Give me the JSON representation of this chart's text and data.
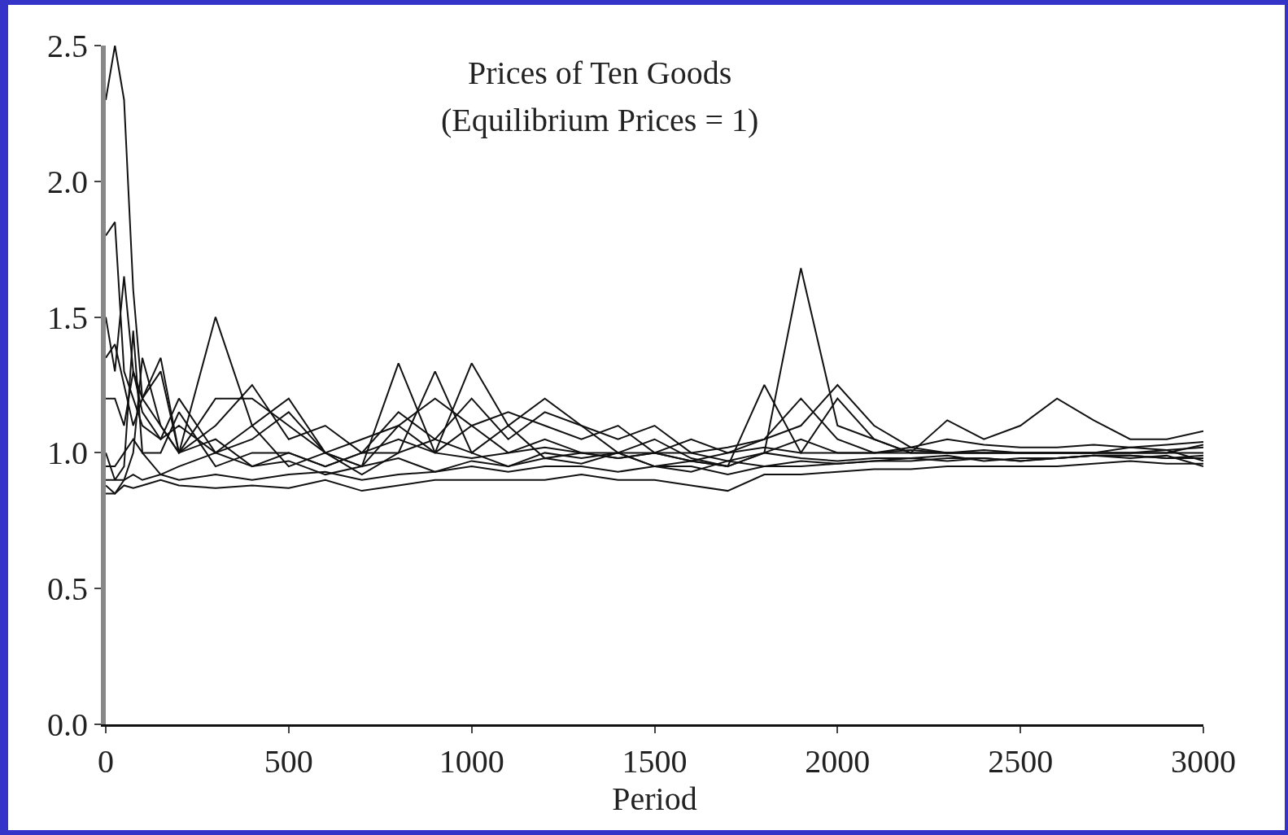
{
  "chart_data": {
    "type": "line",
    "title": "Prices of Ten Goods",
    "subtitle": "(Equilibrium Prices = 1)",
    "xlabel": "Period",
    "x": [
      0,
      25,
      50,
      75,
      100,
      150,
      200,
      300,
      400,
      500,
      600,
      700,
      800,
      900,
      1000,
      1100,
      1200,
      1300,
      1400,
      1500,
      1600,
      1700,
      1800,
      1900,
      2000,
      2100,
      2200,
      2300,
      2400,
      2500,
      2600,
      2700,
      2800,
      2900,
      3000
    ],
    "series": [
      {
        "color": "#111111",
        "values": [
          2.3,
          2.5,
          2.3,
          1.6,
          1.2,
          1.1,
          1.0,
          1.05,
          0.95,
          1.0,
          0.95,
          1.0,
          1.05,
          1.0,
          0.98,
          1.0,
          1.02,
          1.0,
          0.98,
          1.0,
          0.97,
          1.0,
          1.02,
          1.0,
          1.0,
          1.0,
          1.01,
          1.0,
          1.0,
          1.0,
          1.0,
          1.0,
          1.0,
          1.0,
          1.0
        ]
      },
      {
        "color": "#111111",
        "values": [
          1.8,
          1.85,
          1.3,
          1.2,
          1.1,
          1.05,
          1.2,
          1.0,
          1.1,
          0.95,
          1.0,
          0.92,
          1.0,
          1.05,
          1.0,
          0.95,
          1.0,
          0.98,
          1.0,
          0.95,
          0.97,
          0.95,
          1.0,
          0.98,
          0.97,
          0.98,
          0.98,
          0.99,
          0.97,
          0.98,
          0.98,
          0.99,
          0.99,
          0.98,
          0.98
        ]
      },
      {
        "color": "#111111",
        "values": [
          1.5,
          1.3,
          1.65,
          1.3,
          1.2,
          1.35,
          1.0,
          1.5,
          1.1,
          1.2,
          1.0,
          0.95,
          1.1,
          1.0,
          1.1,
          1.0,
          1.05,
          1.0,
          0.98,
          1.0,
          1.0,
          0.97,
          1.0,
          1.05,
          1.0,
          1.0,
          1.0,
          1.0,
          1.0,
          1.0,
          1.0,
          1.0,
          1.0,
          1.0,
          1.03
        ]
      },
      {
        "color": "#111111",
        "values": [
          1.0,
          0.9,
          0.95,
          1.45,
          1.0,
          1.0,
          1.15,
          0.95,
          1.0,
          1.0,
          0.95,
          1.0,
          1.0,
          1.3,
          1.0,
          1.1,
          0.98,
          1.0,
          1.0,
          1.0,
          0.97,
          0.95,
          1.0,
          1.68,
          1.1,
          1.05,
          1.0,
          1.0,
          1.0,
          1.0,
          1.0,
          1.0,
          1.0,
          1.01,
          1.02
        ]
      },
      {
        "color": "#111111",
        "values": [
          0.88,
          0.85,
          0.9,
          1.0,
          1.35,
          1.1,
          1.0,
          1.2,
          1.2,
          1.1,
          1.0,
          0.95,
          1.33,
          1.0,
          1.33,
          1.1,
          1.2,
          1.1,
          1.0,
          1.05,
          0.98,
          0.95,
          1.25,
          1.0,
          1.2,
          1.05,
          1.0,
          1.12,
          1.05,
          1.1,
          1.2,
          1.12,
          1.05,
          1.05,
          1.08
        ]
      },
      {
        "color": "#111111",
        "values": [
          0.85,
          0.85,
          0.88,
          0.87,
          0.88,
          0.9,
          0.88,
          0.87,
          0.88,
          0.87,
          0.9,
          0.86,
          0.88,
          0.9,
          0.9,
          0.9,
          0.9,
          0.92,
          0.9,
          0.9,
          0.88,
          0.86,
          0.92,
          0.92,
          0.93,
          0.94,
          0.94,
          0.95,
          0.95,
          0.95,
          0.95,
          0.96,
          0.97,
          0.96,
          0.96
        ]
      },
      {
        "color": "#111111",
        "values": [
          0.9,
          0.9,
          0.9,
          0.92,
          0.9,
          0.92,
          0.9,
          0.92,
          0.9,
          0.92,
          0.93,
          0.9,
          0.92,
          0.93,
          0.95,
          0.93,
          0.95,
          0.95,
          0.93,
          0.95,
          0.95,
          0.92,
          0.95,
          0.95,
          0.96,
          0.97,
          0.97,
          0.98,
          0.98,
          0.97,
          0.98,
          0.99,
          0.98,
          0.99,
          0.95
        ]
      },
      {
        "color": "#111111",
        "values": [
          1.2,
          1.2,
          1.1,
          1.3,
          1.15,
          1.05,
          1.1,
          1.0,
          1.05,
          1.15,
          1.0,
          1.05,
          1.1,
          1.2,
          1.1,
          1.15,
          1.1,
          1.05,
          1.1,
          1.0,
          1.05,
          1.0,
          1.05,
          1.2,
          1.05,
          1.0,
          1.02,
          1.0,
          1.01,
          1.0,
          1.0,
          1.0,
          1.02,
          1.01,
          0.97
        ]
      },
      {
        "color": "#111111",
        "values": [
          0.95,
          0.95,
          1.0,
          1.05,
          1.0,
          0.92,
          0.95,
          1.0,
          0.95,
          0.97,
          0.92,
          0.95,
          0.98,
          0.93,
          0.97,
          0.95,
          0.98,
          0.96,
          1.0,
          0.95,
          0.93,
          0.97,
          0.95,
          0.97,
          0.96,
          0.97,
          0.98,
          0.97,
          0.98,
          0.97,
          0.98,
          0.99,
          0.99,
          0.98,
          0.99
        ]
      },
      {
        "color": "#111111",
        "values": [
          1.35,
          1.4,
          1.25,
          1.1,
          1.2,
          1.3,
          1.0,
          1.1,
          1.25,
          1.05,
          1.1,
          1.0,
          1.15,
          1.05,
          1.2,
          1.05,
          1.15,
          1.1,
          1.05,
          1.1,
          1.0,
          1.02,
          1.05,
          1.1,
          1.25,
          1.1,
          1.02,
          1.05,
          1.03,
          1.02,
          1.02,
          1.03,
          1.02,
          1.03,
          1.04
        ]
      }
    ],
    "xlim": [
      0,
      3000
    ],
    "xticks": [
      0,
      500,
      1000,
      1500,
      2000,
      2500,
      3000
    ],
    "ylim": [
      0,
      2.5
    ],
    "yticks": [
      {
        "value": 0,
        "label": "0.0"
      },
      {
        "value": 0.5,
        "label": "0.5"
      },
      {
        "value": 1,
        "label": "1.0"
      },
      {
        "value": 1.5,
        "label": "1.5"
      },
      {
        "value": 2,
        "label": "2.0"
      },
      {
        "value": 2.5,
        "label": "2.5"
      }
    ],
    "grid": false,
    "marker": "none",
    "line_style": "solid"
  }
}
